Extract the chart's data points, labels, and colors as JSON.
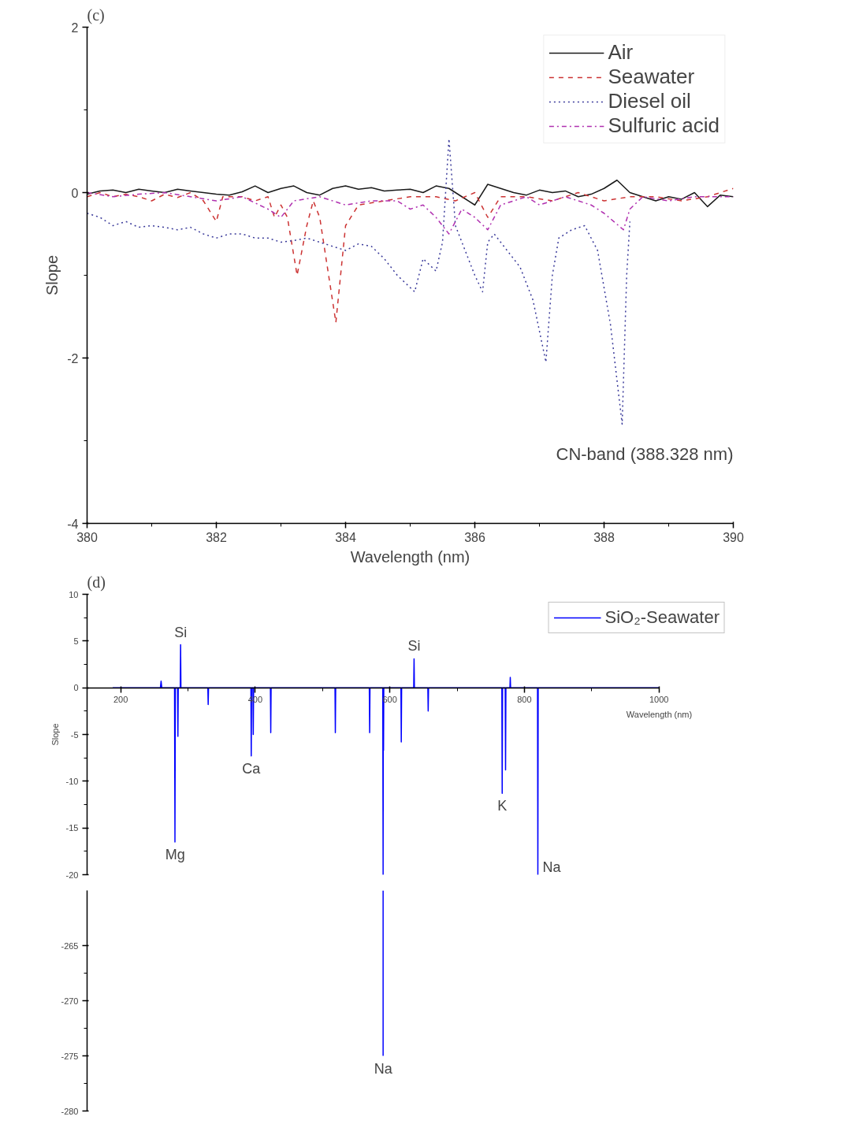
{
  "chart_data": [
    {
      "type": "line",
      "title": "(c)",
      "xlabel": "Wavelength (nm)",
      "ylabel": "Slope",
      "xlim": [
        380,
        390
      ],
      "ylim": [
        -4,
        2
      ],
      "xticks": [
        380,
        382,
        384,
        386,
        388,
        390
      ],
      "yticks": [
        -4,
        -2,
        0,
        2
      ],
      "grid": false,
      "legend": "top right",
      "marker": "none",
      "annotations": [
        "CN-band (388.328 nm)"
      ],
      "series": [
        {
          "name": "Air",
          "color": "#1a1a1a",
          "line_style": "solid",
          "x": [
            380,
            380.2,
            380.4,
            380.6,
            380.8,
            381.0,
            381.2,
            381.4,
            381.6,
            381.8,
            382.0,
            382.2,
            382.4,
            382.6,
            382.8,
            383.0,
            383.2,
            383.4,
            383.6,
            383.8,
            384.0,
            384.2,
            384.4,
            384.6,
            384.8,
            385.0,
            385.2,
            385.4,
            385.6,
            385.8,
            386.0,
            386.2,
            386.4,
            386.6,
            386.8,
            387.0,
            387.2,
            387.4,
            387.6,
            387.8,
            388.0,
            388.2,
            388.4,
            388.6,
            388.8,
            389.0,
            389.2,
            389.4,
            389.6,
            389.8,
            390
          ],
          "values": [
            -0.02,
            0.02,
            0.03,
            0.0,
            0.04,
            0.02,
            0.0,
            0.04,
            0.02,
            0.0,
            -0.02,
            -0.03,
            0.01,
            0.08,
            0.0,
            0.05,
            0.08,
            0.0,
            -0.03,
            0.05,
            0.08,
            0.04,
            0.06,
            0.02,
            0.03,
            0.04,
            0.0,
            0.08,
            0.05,
            -0.05,
            -0.15,
            0.1,
            0.05,
            0.0,
            -0.03,
            0.03,
            0.0,
            0.02,
            -0.05,
            -0.02,
            0.05,
            0.15,
            0.0,
            -0.05,
            -0.1,
            -0.05,
            -0.08,
            0.0,
            -0.17,
            -0.03,
            -0.05
          ]
        },
        {
          "name": "Seawater",
          "color": "#cc3333",
          "line_style": "dashed",
          "x": [
            380,
            380.2,
            380.4,
            380.6,
            380.8,
            381.0,
            381.2,
            381.4,
            381.6,
            381.8,
            382.0,
            382.1,
            382.4,
            382.6,
            382.8,
            382.9,
            383.0,
            383.1,
            383.25,
            383.4,
            383.5,
            383.6,
            383.85,
            384.0,
            384.2,
            384.6,
            385.0,
            385.4,
            385.7,
            386.0,
            386.2,
            386.4,
            386.8,
            387.2,
            387.6,
            388.0,
            388.4,
            388.8,
            389.2,
            389.6,
            390
          ],
          "values": [
            -0.05,
            0.0,
            -0.05,
            -0.02,
            -0.05,
            -0.1,
            -0.02,
            -0.06,
            0.0,
            -0.1,
            -0.35,
            -0.05,
            -0.05,
            -0.1,
            -0.05,
            -0.3,
            -0.15,
            -0.3,
            -1.0,
            -0.4,
            -0.1,
            -0.3,
            -1.57,
            -0.4,
            -0.15,
            -0.1,
            -0.05,
            -0.05,
            -0.1,
            0.0,
            -0.3,
            -0.05,
            -0.05,
            -0.1,
            0.0,
            -0.1,
            -0.05,
            -0.05,
            -0.1,
            -0.05,
            0.05
          ]
        },
        {
          "name": "Diesel oil",
          "color": "#3a3a9a",
          "line_style": "dotted",
          "x": [
            380,
            380.2,
            380.4,
            380.6,
            380.8,
            381.0,
            381.2,
            381.4,
            381.6,
            381.8,
            382.0,
            382.2,
            382.4,
            382.6,
            382.8,
            383.0,
            383.2,
            383.4,
            383.6,
            383.8,
            384.0,
            384.2,
            384.4,
            384.6,
            384.8,
            385.07,
            385.2,
            385.4,
            385.5,
            385.6,
            385.7,
            385.8,
            386.0,
            386.12,
            386.2,
            386.3,
            386.5,
            386.7,
            386.9,
            387.1,
            387.2,
            387.3,
            387.5,
            387.7,
            387.9,
            388.1,
            388.28,
            388.35,
            388.4
          ],
          "values": [
            -0.25,
            -0.3,
            -0.4,
            -0.35,
            -0.42,
            -0.4,
            -0.42,
            -0.45,
            -0.42,
            -0.5,
            -0.55,
            -0.5,
            -0.5,
            -0.55,
            -0.55,
            -0.6,
            -0.58,
            -0.55,
            -0.6,
            -0.65,
            -0.7,
            -0.62,
            -0.65,
            -0.8,
            -1.0,
            -1.2,
            -0.8,
            -0.95,
            -0.6,
            0.65,
            -0.4,
            -0.6,
            -1.0,
            -1.2,
            -0.6,
            -0.5,
            -0.7,
            -0.9,
            -1.3,
            -2.05,
            -1.0,
            -0.55,
            -0.45,
            -0.4,
            -0.7,
            -1.6,
            -2.8,
            -1.0,
            -0.35
          ]
        },
        {
          "name": "Sulfuric acid",
          "color": "#b030b0",
          "line_style": "dashdot",
          "x": [
            380,
            380.4,
            380.8,
            381.2,
            381.6,
            382.0,
            382.4,
            382.8,
            383.0,
            383.2,
            383.6,
            384.0,
            384.4,
            384.8,
            385.0,
            385.2,
            385.4,
            385.6,
            385.8,
            386.0,
            386.2,
            386.4,
            386.6,
            386.8,
            387.0,
            387.4,
            387.8,
            388.0,
            388.3,
            388.4,
            388.6,
            389.0,
            389.4,
            389.8,
            390
          ],
          "values": [
            0.0,
            -0.05,
            -0.02,
            0.0,
            -0.05,
            -0.1,
            -0.05,
            -0.2,
            -0.3,
            -0.1,
            -0.05,
            -0.15,
            -0.1,
            -0.1,
            -0.2,
            -0.15,
            -0.3,
            -0.5,
            -0.2,
            -0.3,
            -0.45,
            -0.15,
            -0.1,
            -0.05,
            -0.15,
            -0.05,
            -0.15,
            -0.25,
            -0.45,
            -0.2,
            -0.05,
            -0.1,
            -0.05,
            -0.05,
            -0.05
          ]
        }
      ]
    },
    {
      "type": "line",
      "title": "(d)",
      "xlabel": "Wavelength (nm)",
      "ylabel": "Slope",
      "xlim": [
        150,
        1000
      ],
      "ylim": [
        -20,
        10
      ],
      "xticks": [
        200,
        400,
        600,
        800,
        1000
      ],
      "yticks": [
        -20,
        -15,
        -10,
        -5,
        0,
        5,
        10
      ],
      "grid": false,
      "legend": "top right",
      "marker": "none",
      "annotations": [
        {
          "text": "Si",
          "x": 289,
          "y": 4.6
        },
        {
          "text": "Mg",
          "x": 281,
          "y": -16.5
        },
        {
          "text": "Ca",
          "x": 394,
          "y": -7.3
        },
        {
          "text": "Si",
          "x": 636,
          "y": 3.1
        },
        {
          "text": "K",
          "x": 767,
          "y": -11.3
        },
        {
          "text": "Na",
          "x": 820,
          "y": -20
        }
      ],
      "series": [
        {
          "name": "SiO₂-Seawater",
          "color": "#0000ff",
          "line_style": "solid",
          "x": [
            188,
            259,
            260,
            261,
            280,
            280.6,
            281.2,
            284.5,
            285,
            285.5,
            288.5,
            289,
            289.5,
            329.5,
            330,
            330.5,
            393.5,
            394,
            394.5,
            396.5,
            397,
            397.5,
            422.5,
            423,
            423.5,
            518.5,
            519,
            519.5,
            569.5,
            570,
            570.5,
            589.5,
            590,
            590.3,
            590.6,
            591,
            616.5,
            617,
            617.5,
            635.5,
            636,
            636.5,
            656.5,
            657,
            657.5,
            766.5,
            767,
            767.5,
            771.5,
            772,
            772.5,
            778.5,
            779,
            779.5,
            819.5,
            820,
            820.5,
            1000
          ],
          "values": [
            0,
            0,
            0.7,
            0,
            0,
            -16.5,
            0,
            0,
            -5.2,
            0,
            0,
            4.6,
            0,
            0,
            -1.8,
            0,
            0,
            -7.3,
            0,
            0,
            -5,
            0,
            0,
            -4.8,
            0,
            0,
            -4.8,
            0,
            0,
            -4.8,
            0,
            0,
            -20,
            0,
            -6.7,
            0,
            0,
            -5.8,
            0,
            0,
            3.1,
            0,
            0,
            -2.5,
            0,
            0,
            -11.3,
            0,
            0,
            -8.8,
            0,
            0,
            1.1,
            0,
            0,
            -20,
            0,
            0
          ]
        }
      ]
    },
    {
      "type": "line",
      "xlim": [
        150,
        1000
      ],
      "ylim": [
        -280,
        -260
      ],
      "yticks": [
        -280,
        -275,
        -270,
        -265
      ],
      "grid": false,
      "tick_labels": "y",
      "marker": "none",
      "annotations": [
        {
          "text": "Na",
          "x": 590,
          "y": -275
        }
      ],
      "series": [
        {
          "color": "#0000ff",
          "line_style": "solid",
          "x": [
            590,
            590
          ],
          "values": [
            -260,
            -275
          ]
        }
      ]
    }
  ]
}
